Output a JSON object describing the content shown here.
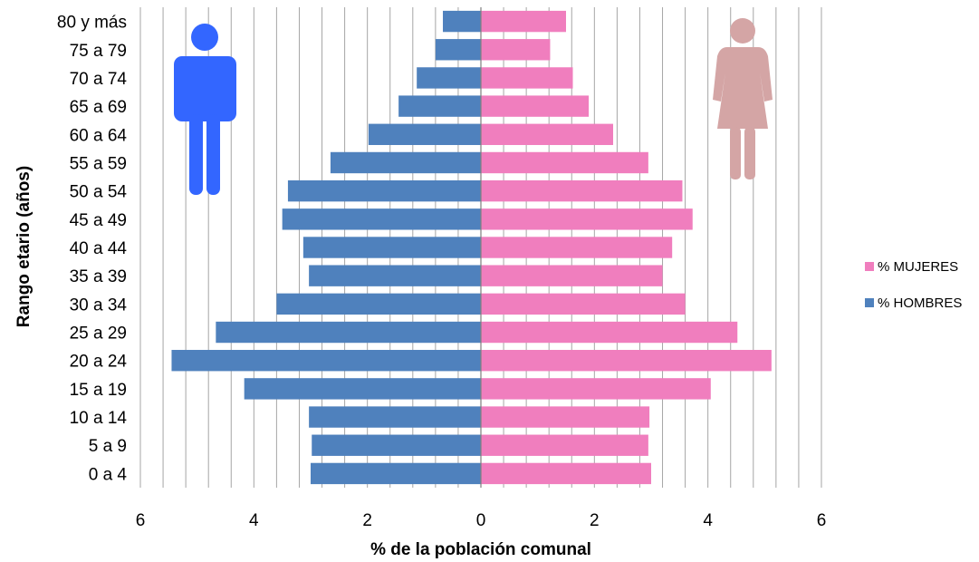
{
  "chart_data": {
    "type": "bar",
    "orientation": "horizontal",
    "layout": "population-pyramid",
    "categories": [
      "0 a 4",
      "5 a 9",
      "10 a 14",
      "15 a 19",
      "20 a 24",
      "25 a 29",
      "30 a 34",
      "35 a 39",
      "40 a 44",
      "45 a 49",
      "50 a 54",
      "55 a 59",
      "60 a 64",
      "65 a 69",
      "70 a 74",
      "75 a 79",
      "80 y más"
    ],
    "series": [
      {
        "name": "% MUJERES",
        "side": "right",
        "color": "#f07ebe",
        "values": [
          3.0,
          2.95,
          2.97,
          4.05,
          5.12,
          4.52,
          3.6,
          3.2,
          3.37,
          3.73,
          3.55,
          2.95,
          2.33,
          1.9,
          1.62,
          1.22,
          1.5
        ]
      },
      {
        "name": "% HOMBRES",
        "side": "left",
        "color": "#4f81bd",
        "values": [
          3.0,
          2.98,
          3.03,
          4.17,
          5.45,
          4.67,
          3.6,
          3.03,
          3.13,
          3.5,
          3.4,
          2.65,
          1.98,
          1.45,
          1.13,
          0.8,
          0.67
        ]
      }
    ],
    "xlabel": "% de la población comunal",
    "ylabel": "Rango etario (años)",
    "xlim": [
      -6,
      6
    ],
    "x_tick_values": [
      -6,
      -4,
      -2,
      0,
      2,
      4,
      6
    ],
    "x_tick_labels": [
      "6",
      "4",
      "2",
      "0",
      "2",
      "4",
      "6"
    ],
    "grid": "vertical",
    "legend_position": "right",
    "legend_order": [
      "% MUJERES",
      "% HOMBRES"
    ]
  },
  "icons": {
    "male": {
      "name": "male-figure-icon",
      "color": "#3366ff"
    },
    "female": {
      "name": "female-figure-icon",
      "color": "#d4a5a5"
    }
  }
}
